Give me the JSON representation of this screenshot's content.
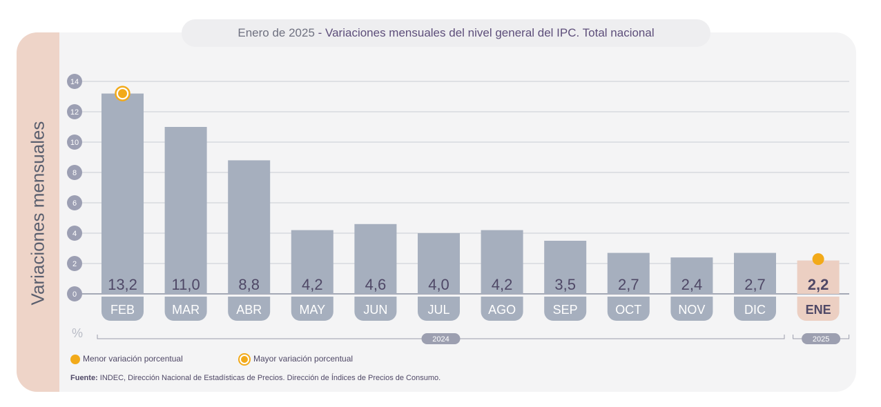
{
  "header": {
    "title_prefix": "Enero de 2025",
    "title_separator": " - ",
    "title_main": "Variaciones mensuales del nivel general del IPC. Total nacional"
  },
  "colors": {
    "bar": "#a6afbe",
    "highlight_bar": "#eccfc2",
    "tick_bubble": "#9c9fb3",
    "marker": "#f2aa1a",
    "label_dark": "#4f4866"
  },
  "chart_data": {
    "type": "bar",
    "title": "Variaciones mensuales del nivel general del IPC. Total nacional",
    "ylabel": "Variaciones mensuales",
    "yunit": "%",
    "ylim": [
      0,
      14
    ],
    "yticks": [
      "0",
      "2",
      "4",
      "6",
      "8",
      "10",
      "12",
      "14"
    ],
    "categories": [
      "FEB",
      "MAR",
      "ABR",
      "MAY",
      "JUN",
      "JUL",
      "AGO",
      "SEP",
      "OCT",
      "NOV",
      "DIC",
      "ENE"
    ],
    "values": [
      13.2,
      11.0,
      8.8,
      4.2,
      4.6,
      4.0,
      4.2,
      3.5,
      2.7,
      2.4,
      2.7,
      2.2
    ],
    "value_labels": [
      "13,2",
      "11,0",
      "8,8",
      "4,2",
      "4,6",
      "4,0",
      "4,2",
      "3,5",
      "2,7",
      "2,4",
      "2,7",
      "2,2"
    ],
    "highlight_index": 11,
    "year_groups": [
      {
        "label": "2024",
        "from": 0,
        "to": 10
      },
      {
        "label": "2025",
        "from": 11,
        "to": 11
      }
    ],
    "markers": [
      {
        "index": 0,
        "kind": "ring"
      },
      {
        "index": 11,
        "kind": "fill"
      }
    ],
    "grid": true
  },
  "legend": {
    "min_label": "Menor variación porcentual",
    "max_label": "Mayor variación porcentual"
  },
  "source": {
    "label": "Fuente:",
    "text": "INDEC, Dirección Nacional de Estadísticas de Precios. Dirección de Índices de Precios de Consumo."
  }
}
